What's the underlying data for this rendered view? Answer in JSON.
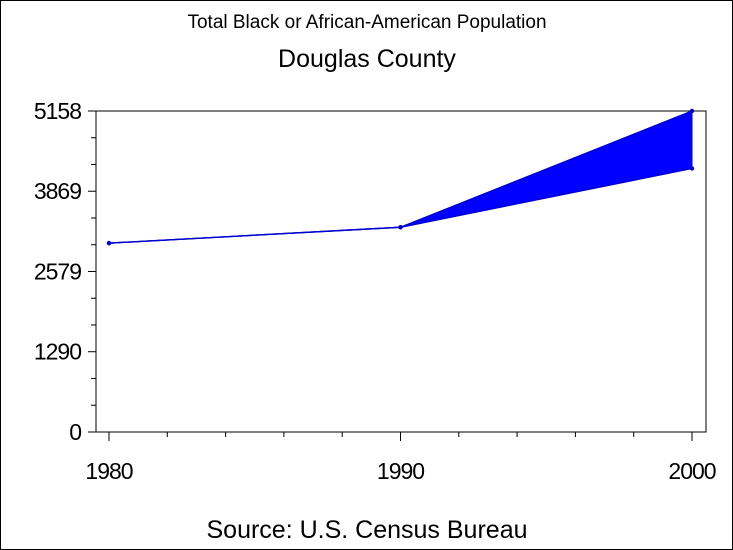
{
  "chart_data": {
    "type": "line",
    "title": "Total Black or African-American Population",
    "subtitle": "Douglas County",
    "footnote": "Source: U.S. Census Bureau",
    "x": [
      1980,
      1990,
      2000
    ],
    "xticks": [
      "1980",
      "1990",
      "2000"
    ],
    "xlim": [
      1980,
      2000
    ],
    "ylim": [
      0,
      5158
    ],
    "yticks": [
      0,
      1290,
      2579,
      3869,
      5158
    ],
    "series": [
      {
        "values": [
          3035,
          3290,
          5158
        ]
      },
      {
        "values": [
          3035,
          3290,
          4235
        ]
      }
    ],
    "band_between_series": true,
    "colors": {
      "line": "#0000cc",
      "band": "#0000ff",
      "frame": "#000000"
    },
    "grid": false
  }
}
